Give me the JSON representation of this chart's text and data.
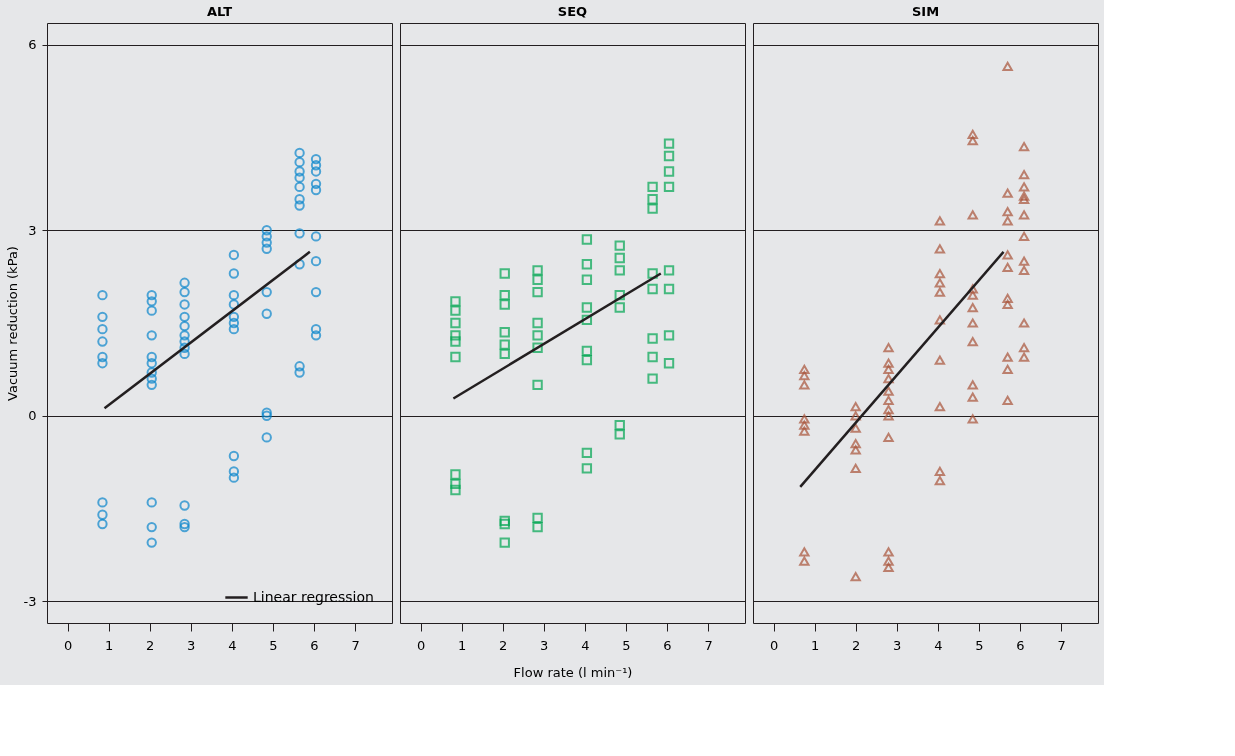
{
  "chart_data": [
    {
      "type": "scatter",
      "title": "ALT",
      "ylabel": "Vacuum reduction (kPa)",
      "xlim": [
        -0.5,
        7.9
      ],
      "ylim": [
        -3.35,
        6.35
      ],
      "xticks": [
        0,
        1,
        2,
        3,
        4,
        5,
        6,
        7
      ],
      "yticks": [
        -3,
        0,
        3,
        6
      ],
      "grid": "y",
      "legend": "bottom right",
      "series": [
        {
          "color": "#0a86cc",
          "marker": "circle",
          "x": [
            0.85,
            0.85,
            0.85,
            0.85,
            0.85,
            0.85,
            0.85,
            0.85,
            0.85,
            2.05,
            2.05,
            2.05,
            2.05,
            2.05,
            2.05,
            2.05,
            2.05,
            2.05,
            2.05,
            2.05,
            2.05,
            2.85,
            2.85,
            2.85,
            2.85,
            2.85,
            2.85,
            2.85,
            2.85,
            2.85,
            2.85,
            2.85,
            2.85,
            4.05,
            4.05,
            4.05,
            4.05,
            4.05,
            4.05,
            4.05,
            4.05,
            4.05,
            4.05,
            4.85,
            4.85,
            4.85,
            4.85,
            4.85,
            4.85,
            4.85,
            4.85,
            4.85,
            5.65,
            5.65,
            5.65,
            5.65,
            5.65,
            5.65,
            5.65,
            5.65,
            5.65,
            5.65,
            5.65,
            6.05,
            6.05,
            6.05,
            6.05,
            6.05,
            6.05,
            6.05,
            6.05,
            6.05,
            6.05
          ],
          "values": [
            1.95,
            1.6,
            1.4,
            1.2,
            0.95,
            0.85,
            -1.4,
            -1.6,
            -1.75,
            1.95,
            1.85,
            1.7,
            1.3,
            0.95,
            0.85,
            0.7,
            0.6,
            0.5,
            -1.4,
            -1.8,
            -2.05,
            2.15,
            2.0,
            1.8,
            1.6,
            1.45,
            1.3,
            1.2,
            1.1,
            1.0,
            -1.45,
            -1.75,
            -1.8,
            2.6,
            2.3,
            1.95,
            1.8,
            1.6,
            1.5,
            1.4,
            -0.65,
            -0.9,
            -1.0,
            3.0,
            2.9,
            2.8,
            2.7,
            2.0,
            1.65,
            0.05,
            0.0,
            -0.35,
            4.25,
            4.1,
            3.95,
            3.85,
            3.7,
            3.5,
            3.4,
            2.95,
            2.45,
            0.8,
            0.7,
            4.15,
            4.05,
            3.95,
            3.75,
            3.65,
            2.9,
            2.5,
            2.0,
            1.4,
            1.3
          ]
        },
        {
          "type": "line",
          "name": "Linear regression",
          "color": "#231f20",
          "x": [
            0.9,
            5.9
          ],
          "values": [
            0.12,
            2.65
          ]
        }
      ]
    },
    {
      "type": "scatter",
      "title": "SEQ",
      "xlabel": "Flow rate (l min⁻¹)",
      "xlim": [
        -0.5,
        7.9
      ],
      "ylim": [
        -3.35,
        6.35
      ],
      "xticks": [
        0,
        1,
        2,
        3,
        4,
        5,
        6,
        7
      ],
      "yticks": [
        -3,
        0,
        3,
        6
      ],
      "grid": "y",
      "tick_labels": "x",
      "series": [
        {
          "color": "#00a651",
          "marker": "square",
          "x": [
            0.85,
            0.85,
            0.85,
            0.85,
            0.85,
            0.85,
            0.85,
            0.85,
            0.85,
            2.05,
            2.05,
            2.05,
            2.05,
            2.05,
            2.05,
            2.05,
            2.05,
            2.05,
            2.85,
            2.85,
            2.85,
            2.85,
            2.85,
            2.85,
            2.85,
            2.85,
            2.85,
            4.05,
            4.05,
            4.05,
            4.05,
            4.05,
            4.05,
            4.05,
            4.05,
            4.05,
            4.85,
            4.85,
            4.85,
            4.85,
            4.85,
            4.85,
            4.85,
            5.65,
            5.65,
            5.65,
            5.65,
            5.65,
            5.65,
            5.65,
            5.65,
            6.05,
            6.05,
            6.05,
            6.05,
            6.05,
            6.05,
            6.05,
            6.05
          ],
          "values": [
            1.85,
            1.7,
            1.5,
            1.3,
            1.2,
            0.95,
            -0.95,
            -1.1,
            -1.2,
            2.3,
            1.95,
            1.8,
            1.35,
            1.15,
            1.0,
            -1.7,
            -1.75,
            -2.05,
            2.35,
            2.2,
            2.0,
            1.5,
            1.3,
            1.1,
            0.5,
            -1.65,
            -1.8,
            2.85,
            2.45,
            2.2,
            1.75,
            1.55,
            1.05,
            0.9,
            -0.6,
            -0.85,
            2.75,
            2.55,
            2.35,
            1.95,
            1.75,
            -0.15,
            -0.3,
            3.7,
            3.5,
            3.35,
            2.3,
            2.05,
            1.25,
            0.95,
            0.6,
            4.4,
            4.2,
            3.95,
            3.7,
            2.35,
            2.05,
            1.3,
            0.85
          ]
        },
        {
          "type": "line",
          "color": "#231f20",
          "x": [
            0.8,
            5.85
          ],
          "values": [
            0.28,
            2.3
          ]
        }
      ]
    },
    {
      "type": "scatter",
      "title": "SIM",
      "xlim": [
        -0.5,
        7.9
      ],
      "ylim": [
        -3.35,
        6.35
      ],
      "xticks": [
        0,
        1,
        2,
        3,
        4,
        5,
        6,
        7
      ],
      "yticks": [
        -3,
        0,
        3,
        6
      ],
      "grid": "y",
      "tick_labels": "x",
      "series": [
        {
          "color": "#a9543a",
          "marker": "triangle",
          "x": [
            0.75,
            0.75,
            0.75,
            0.75,
            0.75,
            0.75,
            0.75,
            0.75,
            2.0,
            2.0,
            2.0,
            2.0,
            2.0,
            2.0,
            2.0,
            2.8,
            2.8,
            2.8,
            2.8,
            2.8,
            2.8,
            2.8,
            2.8,
            2.8,
            2.8,
            2.8,
            2.8,
            4.05,
            4.05,
            4.05,
            4.05,
            4.05,
            4.05,
            4.05,
            4.05,
            4.05,
            4.05,
            4.85,
            4.85,
            4.85,
            4.85,
            4.85,
            4.85,
            4.85,
            4.85,
            4.85,
            4.85,
            4.85,
            5.7,
            5.7,
            5.7,
            5.7,
            5.7,
            5.7,
            5.7,
            5.7,
            5.7,
            5.7,
            5.7,
            6.1,
            6.1,
            6.1,
            6.1,
            6.1,
            6.1,
            6.1,
            6.1,
            6.1,
            6.1,
            6.1,
            6.1
          ],
          "values": [
            0.75,
            0.65,
            0.5,
            -0.05,
            -0.15,
            -0.25,
            -2.2,
            -2.35,
            0.15,
            0.0,
            -0.2,
            -0.45,
            -0.55,
            -0.85,
            -2.6,
            1.1,
            0.85,
            0.75,
            0.6,
            0.4,
            0.25,
            0.1,
            0.0,
            -0.35,
            -2.2,
            -2.35,
            -2.45,
            3.15,
            2.7,
            2.3,
            2.15,
            2.0,
            1.55,
            0.9,
            0.15,
            -0.9,
            -1.05,
            4.55,
            4.45,
            3.25,
            2.05,
            1.95,
            1.75,
            1.5,
            1.2,
            0.5,
            0.3,
            -0.05,
            5.65,
            3.6,
            3.3,
            3.15,
            2.6,
            2.4,
            1.9,
            1.8,
            0.95,
            0.75,
            0.25,
            4.35,
            3.9,
            3.7,
            3.55,
            3.5,
            3.25,
            2.9,
            2.5,
            2.35,
            1.5,
            1.1,
            0.95
          ]
        },
        {
          "type": "line",
          "color": "#231f20",
          "x": [
            0.65,
            5.6
          ],
          "values": [
            -1.15,
            2.65
          ]
        }
      ]
    }
  ]
}
